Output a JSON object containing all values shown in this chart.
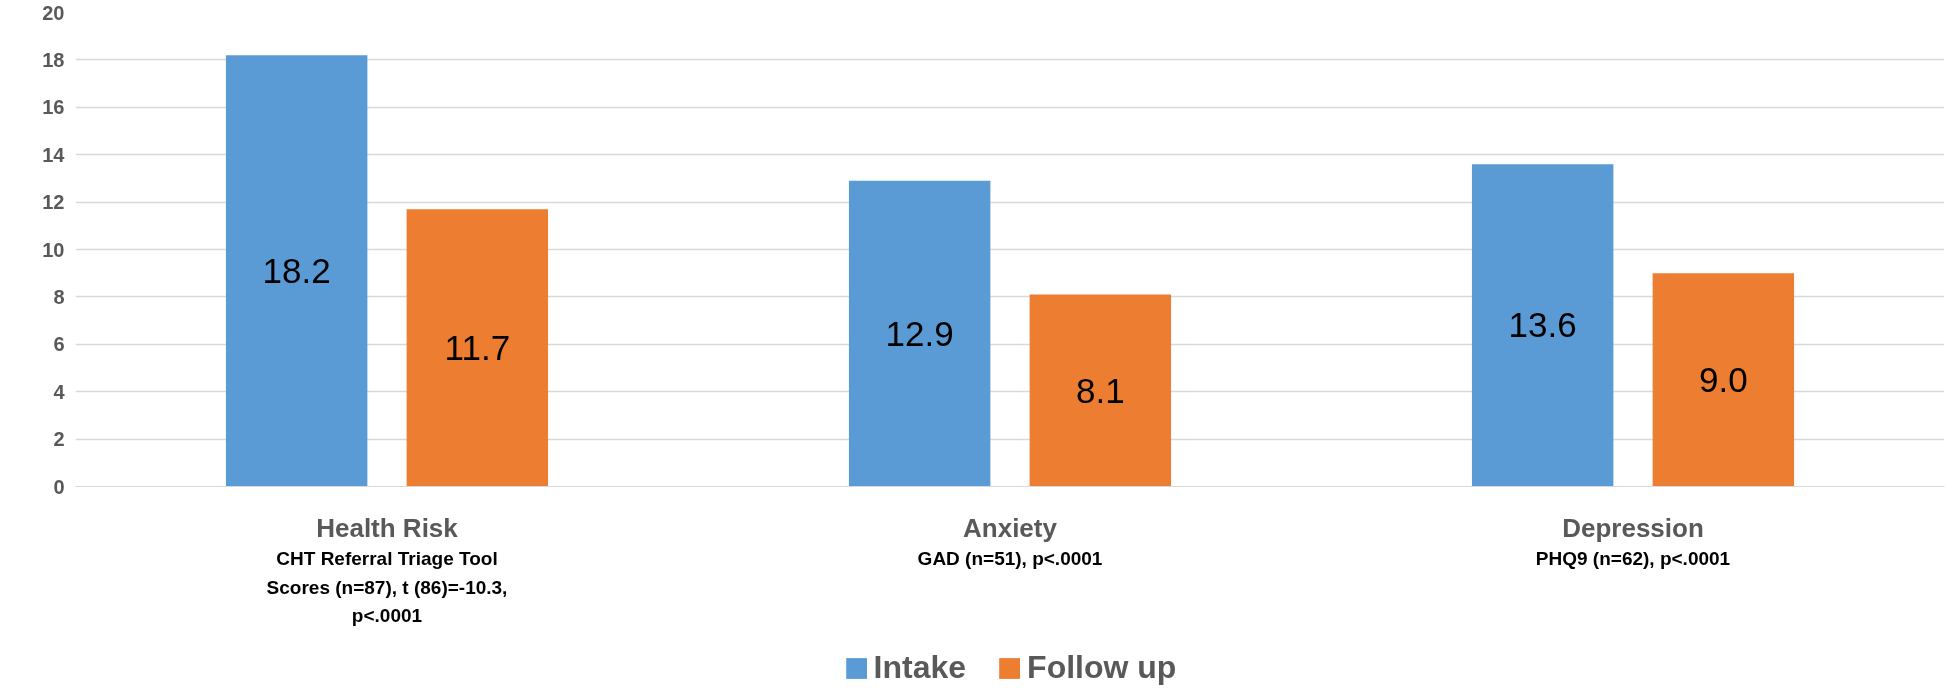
{
  "chart_data": {
    "type": "bar",
    "categories": [
      "Health Risk",
      "Anxiety",
      "Depression"
    ],
    "series": [
      {
        "name": "Intake",
        "color": "#5b9bd5",
        "values": [
          18.2,
          12.9,
          13.6
        ],
        "value_labels": [
          "18.2",
          "12.9",
          "13.6"
        ]
      },
      {
        "name": "Follow up",
        "color": "#ed7d31",
        "values": [
          11.7,
          8.1,
          9.0
        ],
        "value_labels": [
          "11.7",
          "8.1",
          "9.0"
        ]
      }
    ],
    "ylim": [
      0,
      20
    ],
    "yticks": [
      0,
      2,
      4,
      6,
      8,
      10,
      12,
      14,
      16,
      18,
      20
    ],
    "grid": "y",
    "legend": "bottom",
    "annotations": [
      "CHT Referral Triage Tool Scores (n=87), t (86)=-10.3, p<.0001",
      "GAD (n=51), p<.0001",
      "PHQ9 (n=62), p<.0001"
    ]
  }
}
